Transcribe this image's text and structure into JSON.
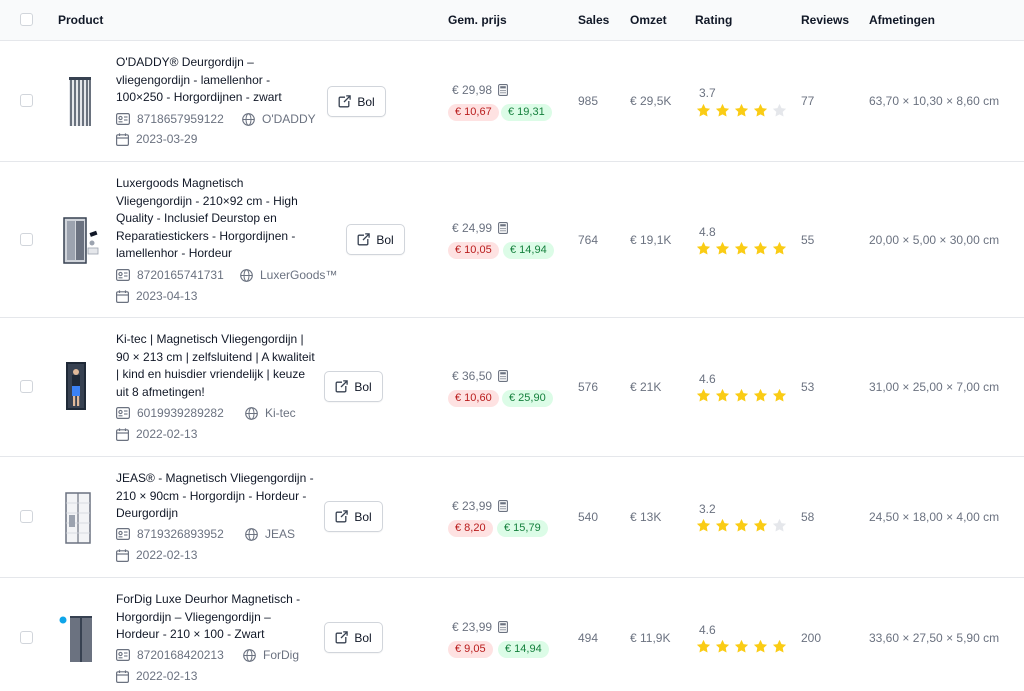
{
  "header": {
    "product": "Product",
    "avg_price": "Gem. prijs",
    "sales": "Sales",
    "revenue": "Omzet",
    "rating": "Rating",
    "reviews": "Reviews",
    "dimensions": "Afmetingen"
  },
  "colors": {
    "star_filled": "#facc15",
    "star_empty": "#e5e7eb",
    "pill_red_bg": "#fee2e2",
    "pill_green_bg": "#dcfce7"
  },
  "rows": [
    {
      "title": "O'DADDY® Deurgordijn – vliegengordijn - lamellenhor - 100×250 - Horgordijnen - zwart",
      "ean": "8718657959122",
      "brand": "O'DADDY",
      "date": "2023-03-29",
      "button": "Bol",
      "price": "€ 29,98",
      "cost": "€ 10,67",
      "margin": "€ 19,31",
      "sales": "985",
      "revenue": "€ 29,5K",
      "rating": "3.7",
      "stars": 4,
      "reviews": "77",
      "dimensions": "63,70 × 10,30 × 8,60 cm",
      "thumb_icon": "dark-strip-door-curtain-image"
    },
    {
      "title": "Luxergoods Magnetisch Vliegengordijn - 210×92 cm - High Quality - Inclusief Deurstop en Reparatiestickers - Horgordijnen - lamellenhor - Hordeur",
      "ean": "8720165741731",
      "brand": "LuxerGoods™",
      "date": "2023-04-13",
      "button": "Bol",
      "price": "€ 24,99",
      "cost": "€ 10,05",
      "margin": "€ 14,94",
      "sales": "764",
      "revenue": "€ 19,1K",
      "rating": "4.8",
      "stars": 5,
      "reviews": "55",
      "dimensions": "20,00 × 5,00 × 30,00 cm",
      "thumb_icon": "magnetic-curtain-door-image"
    },
    {
      "title": "Ki-tec | Magnetisch Vliegengordijn | 90 × 213 cm | zelfsluitend | A kwaliteit | kind en huisdier vriendelijk | keuze uit 8 afmetingen!",
      "ean": "6019939289282",
      "brand": "Ki-tec",
      "date": "2022-02-13",
      "button": "Bol",
      "price": "€ 36,50",
      "cost": "€ 10,60",
      "margin": "€ 25,90",
      "sales": "576",
      "revenue": "€ 21K",
      "rating": "4.6",
      "stars": 5,
      "reviews": "53",
      "dimensions": "31,00 × 25,00 × 7,00 cm",
      "thumb_icon": "person-in-doorway-image"
    },
    {
      "title": "JEAS® - Magnetisch Vliegengordijn - 210 × 90cm - Horgordijn - Hordeur - Deurgordijn",
      "ean": "8719326893952",
      "brand": "JEAS",
      "date": "2022-02-13",
      "button": "Bol",
      "price": "€ 23,99",
      "cost": "€ 8,20",
      "margin": "€ 15,79",
      "sales": "540",
      "revenue": "€ 13K",
      "rating": "3.2",
      "stars": 4,
      "reviews": "58",
      "dimensions": "24,50 × 18,00 × 4,00 cm",
      "thumb_icon": "mesh-door-curtain-image"
    },
    {
      "title": "ForDig Luxe Deurhor Magnetisch - Horgordijn – Vliegengordijn – Hordeur - 210 × 100 - Zwart",
      "ean": "8720168420213",
      "brand": "ForDig",
      "date": "2022-02-13",
      "button": "Bol",
      "price": "€ 23,99",
      "cost": "€ 9,05",
      "margin": "€ 14,94",
      "sales": "494",
      "revenue": "€ 11,9K",
      "rating": "4.6",
      "stars": 5,
      "reviews": "200",
      "dimensions": "33,60 × 27,50 × 5,90 cm",
      "thumb_icon": "grey-curtain-image"
    }
  ]
}
